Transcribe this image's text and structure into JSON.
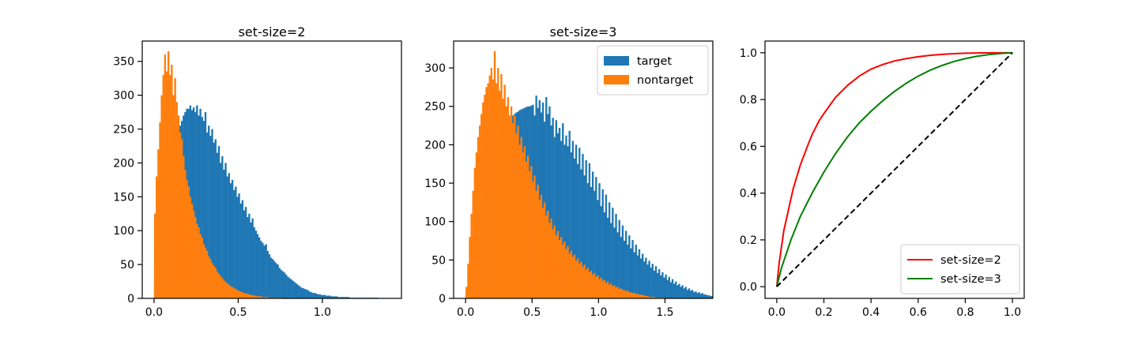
{
  "chart_data": [
    {
      "type": "bar",
      "subtype": "histogram",
      "title": "set-size=2",
      "xlabel": "",
      "ylabel": "",
      "xlim": [
        -0.07,
        1.47
      ],
      "ylim": [
        0,
        380
      ],
      "xticks": [
        "0.0",
        "0.5",
        "1.0"
      ],
      "xtick_values": [
        0.0,
        0.5,
        1.0
      ],
      "yticks": [
        "0",
        "50",
        "100",
        "150",
        "200",
        "250",
        "300",
        "350"
      ],
      "ytick_values": [
        0,
        50,
        100,
        150,
        200,
        250,
        300,
        350
      ],
      "bin_width": 0.01,
      "series": [
        {
          "name": "target",
          "color": "#1f77b4",
          "x": [
            0.0,
            0.01,
            0.02,
            0.03,
            0.04,
            0.05,
            0.06,
            0.07,
            0.08,
            0.09,
            0.1,
            0.11,
            0.12,
            0.13,
            0.14,
            0.15,
            0.16,
            0.17,
            0.18,
            0.19,
            0.2,
            0.21,
            0.22,
            0.23,
            0.24,
            0.25,
            0.26,
            0.27,
            0.28,
            0.29,
            0.3,
            0.31,
            0.32,
            0.33,
            0.34,
            0.35,
            0.36,
            0.37,
            0.38,
            0.39,
            0.4,
            0.41,
            0.42,
            0.43,
            0.44,
            0.45,
            0.46,
            0.47,
            0.48,
            0.49,
            0.5,
            0.51,
            0.52,
            0.53,
            0.54,
            0.55,
            0.56,
            0.57,
            0.58,
            0.59,
            0.6,
            0.61,
            0.62,
            0.63,
            0.64,
            0.65,
            0.66,
            0.67,
            0.68,
            0.69,
            0.7,
            0.71,
            0.72,
            0.73,
            0.74,
            0.75,
            0.76,
            0.77,
            0.78,
            0.79,
            0.8,
            0.81,
            0.82,
            0.83,
            0.84,
            0.85,
            0.86,
            0.87,
            0.88,
            0.89,
            0.9,
            0.91,
            0.92,
            0.93,
            0.94,
            0.95,
            0.96,
            0.97,
            0.98,
            0.99,
            1.0,
            1.01,
            1.02,
            1.03,
            1.04,
            1.05,
            1.06,
            1.07,
            1.08,
            1.09,
            1.1,
            1.11,
            1.12,
            1.13,
            1.14,
            1.15,
            1.16,
            1.17,
            1.18,
            1.19,
            1.2,
            1.21,
            1.22,
            1.23,
            1.24,
            1.25,
            1.26,
            1.27,
            1.28,
            1.29,
            1.3,
            1.31,
            1.32,
            1.33,
            1.34,
            1.35
          ],
          "values": [
            25,
            50,
            80,
            110,
            140,
            165,
            190,
            205,
            215,
            225,
            230,
            235,
            240,
            245,
            250,
            255,
            262,
            270,
            275,
            280,
            280,
            285,
            278,
            282,
            275,
            285,
            270,
            280,
            268,
            262,
            275,
            245,
            255,
            240,
            250,
            230,
            235,
            215,
            225,
            200,
            210,
            190,
            200,
            180,
            185,
            170,
            175,
            160,
            165,
            150,
            155,
            140,
            145,
            130,
            135,
            120,
            125,
            112,
            118,
            105,
            100,
            95,
            90,
            85,
            82,
            78,
            80,
            70,
            65,
            60,
            58,
            55,
            52,
            50,
            45,
            42,
            40,
            38,
            35,
            32,
            30,
            28,
            26,
            24,
            22,
            20,
            18,
            16,
            15,
            14,
            13,
            12,
            10,
            9,
            8,
            8,
            7,
            6,
            6,
            5,
            5,
            5,
            4,
            4,
            4,
            3,
            3,
            3,
            3,
            2,
            2,
            2,
            2,
            2,
            2,
            2,
            1,
            1,
            1,
            1,
            1,
            1,
            1,
            1,
            1,
            1,
            1,
            1,
            1,
            1,
            1,
            1,
            1,
            0,
            0,
            0
          ]
        },
        {
          "name": "nontarget",
          "color": "#ff7f0e",
          "x": [
            0.0,
            0.01,
            0.02,
            0.03,
            0.04,
            0.05,
            0.06,
            0.07,
            0.08,
            0.09,
            0.1,
            0.11,
            0.12,
            0.13,
            0.14,
            0.15,
            0.16,
            0.17,
            0.18,
            0.19,
            0.2,
            0.21,
            0.22,
            0.23,
            0.24,
            0.25,
            0.26,
            0.27,
            0.28,
            0.29,
            0.3,
            0.31,
            0.32,
            0.33,
            0.34,
            0.35,
            0.36,
            0.37,
            0.38,
            0.39,
            0.4,
            0.41,
            0.42,
            0.43,
            0.44,
            0.45,
            0.46,
            0.47,
            0.48,
            0.49,
            0.5,
            0.51,
            0.52,
            0.53,
            0.54,
            0.55,
            0.56,
            0.57,
            0.58,
            0.59,
            0.6,
            0.61,
            0.62,
            0.63,
            0.64,
            0.65,
            0.66,
            0.67,
            0.68,
            0.69,
            0.7,
            0.71,
            0.72,
            0.73,
            0.74,
            0.75,
            0.76,
            0.77,
            0.78,
            0.79
          ],
          "values": [
            125,
            180,
            220,
            260,
            300,
            330,
            360,
            335,
            365,
            330,
            345,
            300,
            325,
            290,
            270,
            245,
            235,
            210,
            190,
            175,
            165,
            150,
            140,
            130,
            120,
            110,
            105,
            95,
            90,
            80,
            75,
            70,
            62,
            58,
            52,
            48,
            45,
            40,
            36,
            33,
            30,
            27,
            24,
            22,
            20,
            18,
            17,
            15,
            14,
            12,
            11,
            10,
            9,
            8,
            7,
            7,
            6,
            5,
            5,
            4,
            4,
            3,
            3,
            3,
            2,
            2,
            2,
            2,
            1,
            1,
            1,
            1,
            1,
            1,
            1,
            1,
            0,
            0,
            0,
            0
          ]
        }
      ]
    },
    {
      "type": "bar",
      "subtype": "histogram",
      "title": "set-size=3",
      "xlabel": "",
      "ylabel": "",
      "xlim": [
        -0.09,
        1.86
      ],
      "ylim": [
        0,
        335
      ],
      "xticks": [
        "0.0",
        "0.5",
        "1.0",
        "1.5"
      ],
      "xtick_values": [
        0.0,
        0.5,
        1.0,
        1.5
      ],
      "yticks": [
        "0",
        "50",
        "100",
        "150",
        "200",
        "250",
        "300"
      ],
      "ytick_values": [
        0,
        50,
        100,
        150,
        200,
        250,
        300
      ],
      "bin_width": 0.0125,
      "legend": {
        "position": "top-right",
        "entries": [
          "target",
          "nontarget"
        ]
      },
      "series": [
        {
          "name": "target",
          "color": "#1f77b4",
          "x_start": 0.0,
          "values": [
            5,
            15,
            30,
            45,
            60,
            75,
            90,
            105,
            118,
            130,
            140,
            150,
            158,
            165,
            172,
            180,
            186,
            192,
            198,
            203,
            208,
            213,
            218,
            222,
            226,
            230,
            233,
            236,
            238,
            240,
            242,
            243,
            245,
            246,
            247,
            248,
            249,
            250,
            250,
            251,
            252,
            238,
            264,
            248,
            258,
            242,
            255,
            230,
            262,
            240,
            250,
            225,
            235,
            210,
            232,
            215,
            222,
            205,
            228,
            200,
            212,
            198,
            218,
            190,
            205,
            182,
            200,
            175,
            196,
            168,
            188,
            160,
            180,
            150,
            176,
            145,
            165,
            140,
            158,
            128,
            150,
            120,
            142,
            112,
            135,
            105,
            125,
            98,
            118,
            92,
            110,
            86,
            102,
            80,
            95,
            75,
            88,
            70,
            82,
            65,
            76,
            60,
            70,
            56,
            64,
            52,
            58,
            48,
            53,
            44,
            49,
            40,
            45,
            36,
            42,
            33,
            38,
            30,
            34,
            27,
            31,
            24,
            28,
            21,
            25,
            19,
            22,
            17,
            19,
            15,
            17,
            13,
            15,
            11,
            13,
            10,
            11,
            8,
            9,
            7,
            8,
            6,
            7,
            5,
            5,
            4,
            4,
            3,
            3,
            2
          ]
        },
        {
          "name": "nontarget",
          "color": "#ff7f0e",
          "x_start": 0.0,
          "values": [
            15,
            45,
            80,
            110,
            140,
            170,
            190,
            210,
            225,
            240,
            255,
            265,
            275,
            280,
            290,
            300,
            285,
            322,
            280,
            300,
            270,
            292,
            260,
            278,
            250,
            262,
            238,
            250,
            228,
            238,
            215,
            225,
            200,
            210,
            190,
            198,
            178,
            186,
            165,
            172,
            152,
            160,
            140,
            148,
            128,
            135,
            118,
            125,
            108,
            114,
            98,
            104,
            90,
            95,
            82,
            88,
            76,
            80,
            70,
            74,
            64,
            68,
            58,
            62,
            54,
            57,
            49,
            52,
            45,
            48,
            41,
            44,
            37,
            40,
            34,
            36,
            31,
            33,
            28,
            30,
            25,
            27,
            23,
            24,
            20,
            22,
            18,
            19,
            16,
            17,
            14,
            15,
            12,
            13,
            11,
            11,
            9,
            10,
            8,
            8,
            7,
            7,
            6,
            6,
            5,
            5,
            4,
            4,
            3,
            3,
            2,
            2,
            2,
            2,
            1,
            1,
            1,
            1,
            1,
            1
          ]
        }
      ]
    },
    {
      "type": "line",
      "title": "",
      "xlabel": "",
      "ylabel": "",
      "xlim": [
        -0.05,
        1.05
      ],
      "ylim": [
        -0.05,
        1.05
      ],
      "xticks": [
        "0.0",
        "0.2",
        "0.4",
        "0.6",
        "0.8",
        "1.0"
      ],
      "xtick_values": [
        0.0,
        0.2,
        0.4,
        0.6,
        0.8,
        1.0
      ],
      "yticks": [
        "0.0",
        "0.2",
        "0.4",
        "0.6",
        "0.8",
        "1.0"
      ],
      "ytick_values": [
        0.0,
        0.2,
        0.4,
        0.6,
        0.8,
        1.0
      ],
      "legend": {
        "position": "bottom-right",
        "entries": [
          "set-size=2",
          "set-size=3"
        ]
      },
      "series": [
        {
          "name": "set-size=2",
          "color": "#ff0000",
          "x": [
            0,
            0.01,
            0.02,
            0.03,
            0.05,
            0.07,
            0.1,
            0.13,
            0.15,
            0.18,
            0.2,
            0.25,
            0.3,
            0.35,
            0.4,
            0.45,
            0.5,
            0.55,
            0.6,
            0.65,
            0.7,
            0.75,
            0.8,
            0.85,
            0.9,
            0.95,
            1.0
          ],
          "values": [
            0,
            0.1,
            0.17,
            0.24,
            0.33,
            0.42,
            0.52,
            0.6,
            0.65,
            0.71,
            0.74,
            0.81,
            0.86,
            0.9,
            0.93,
            0.95,
            0.965,
            0.975,
            0.983,
            0.989,
            0.993,
            0.996,
            0.998,
            0.999,
            0.9995,
            1.0,
            1.0
          ]
        },
        {
          "name": "set-size=3",
          "color": "#008000",
          "x": [
            0,
            0.01,
            0.02,
            0.04,
            0.06,
            0.08,
            0.1,
            0.15,
            0.2,
            0.25,
            0.3,
            0.35,
            0.4,
            0.45,
            0.5,
            0.55,
            0.6,
            0.65,
            0.7,
            0.75,
            0.8,
            0.85,
            0.9,
            0.95,
            1.0
          ],
          "values": [
            0,
            0.04,
            0.08,
            0.14,
            0.2,
            0.25,
            0.3,
            0.4,
            0.49,
            0.57,
            0.64,
            0.7,
            0.75,
            0.795,
            0.835,
            0.87,
            0.9,
            0.925,
            0.945,
            0.962,
            0.975,
            0.985,
            0.992,
            0.997,
            1.0
          ]
        },
        {
          "name": "",
          "color": "#000000",
          "style": "dashed",
          "x": [
            0,
            1
          ],
          "values": [
            0,
            1
          ]
        }
      ]
    }
  ]
}
